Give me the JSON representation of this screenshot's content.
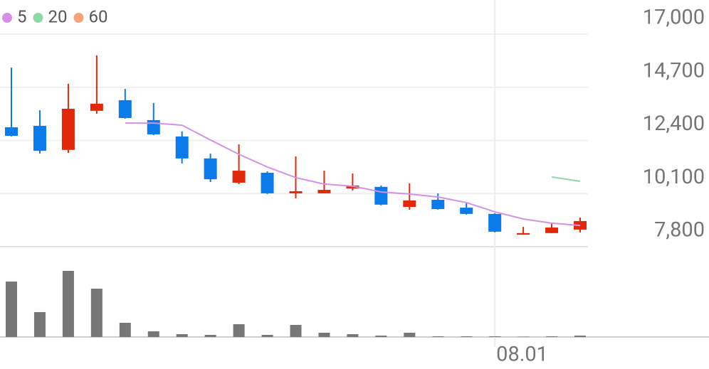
{
  "chart_data": {
    "type": "candlestick",
    "categories": [
      null,
      null,
      null,
      null,
      null,
      null,
      null,
      null,
      null,
      null,
      null,
      null,
      null,
      null,
      null,
      null,
      null,
      "08.01",
      null,
      null,
      null
    ],
    "open": [
      12970,
      13030,
      11990,
      13680,
      14140,
      13280,
      12570,
      11620,
      10570,
      11000,
      10110,
      10110,
      10320,
      10390,
      9520,
      9830,
      9490,
      9220,
      8320,
      8390,
      8540
    ],
    "high": [
      15550,
      13710,
      14850,
      16080,
      14630,
      14020,
      12790,
      11830,
      12230,
      11060,
      11710,
      11090,
      10970,
      10450,
      10540,
      10110,
      9680,
      9250,
      8660,
      8820,
      9060
    ],
    "low": [
      12570,
      11830,
      11860,
      13550,
      13340,
      12630,
      11400,
      10600,
      10510,
      10080,
      9890,
      10110,
      10230,
      9590,
      9400,
      9400,
      9190,
      8420,
      8320,
      8390,
      8420
    ],
    "close": [
      12600,
      11950,
      13770,
      13990,
      13370,
      12660,
      11620,
      10720,
      11090,
      10110,
      10200,
      10260,
      10450,
      9620,
      9800,
      9430,
      9220,
      8450,
      8390,
      8630,
      8910
    ],
    "up_color": "#e0290b",
    "down_color": "#0b7bea",
    "series": [
      {
        "name": "5",
        "color": "#d48fe6",
        "values": [
          null,
          null,
          null,
          null,
          13150,
          13150,
          13060,
          12420,
          11800,
          11250,
          10790,
          10510,
          10420,
          10170,
          10080,
          9950,
          9710,
          9310,
          9000,
          8820,
          8720
        ]
      },
      {
        "name": "20",
        "color": "#8ed8a6",
        "values": [
          null,
          null,
          null,
          null,
          null,
          null,
          null,
          null,
          null,
          null,
          null,
          null,
          null,
          null,
          null,
          null,
          null,
          null,
          null,
          10820,
          10630
        ]
      },
      {
        "name": "60",
        "color": "#f4a17c",
        "values": [
          null,
          null,
          null,
          null,
          null,
          null,
          null,
          null,
          null,
          null,
          null,
          null,
          null,
          null,
          null,
          null,
          null,
          null,
          null,
          null,
          null
        ]
      }
    ],
    "volume": {
      "color": "#777777",
      "ylim": [
        0,
        100
      ],
      "values": [
        78,
        35,
        93,
        68,
        20,
        8,
        4,
        3,
        18,
        3,
        17,
        6,
        4,
        2,
        6,
        1,
        1,
        1,
        0.5,
        1,
        2
      ]
    },
    "ylim": [
      7800,
      17000
    ],
    "yticks": [
      {
        "value": 7800,
        "label": "7,800"
      },
      {
        "value": 10100,
        "label": "10,100"
      },
      {
        "value": 12400,
        "label": "12,400"
      },
      {
        "value": 14700,
        "label": "14,700"
      },
      {
        "value": 17000,
        "label": "17,000"
      }
    ],
    "grid": true
  }
}
